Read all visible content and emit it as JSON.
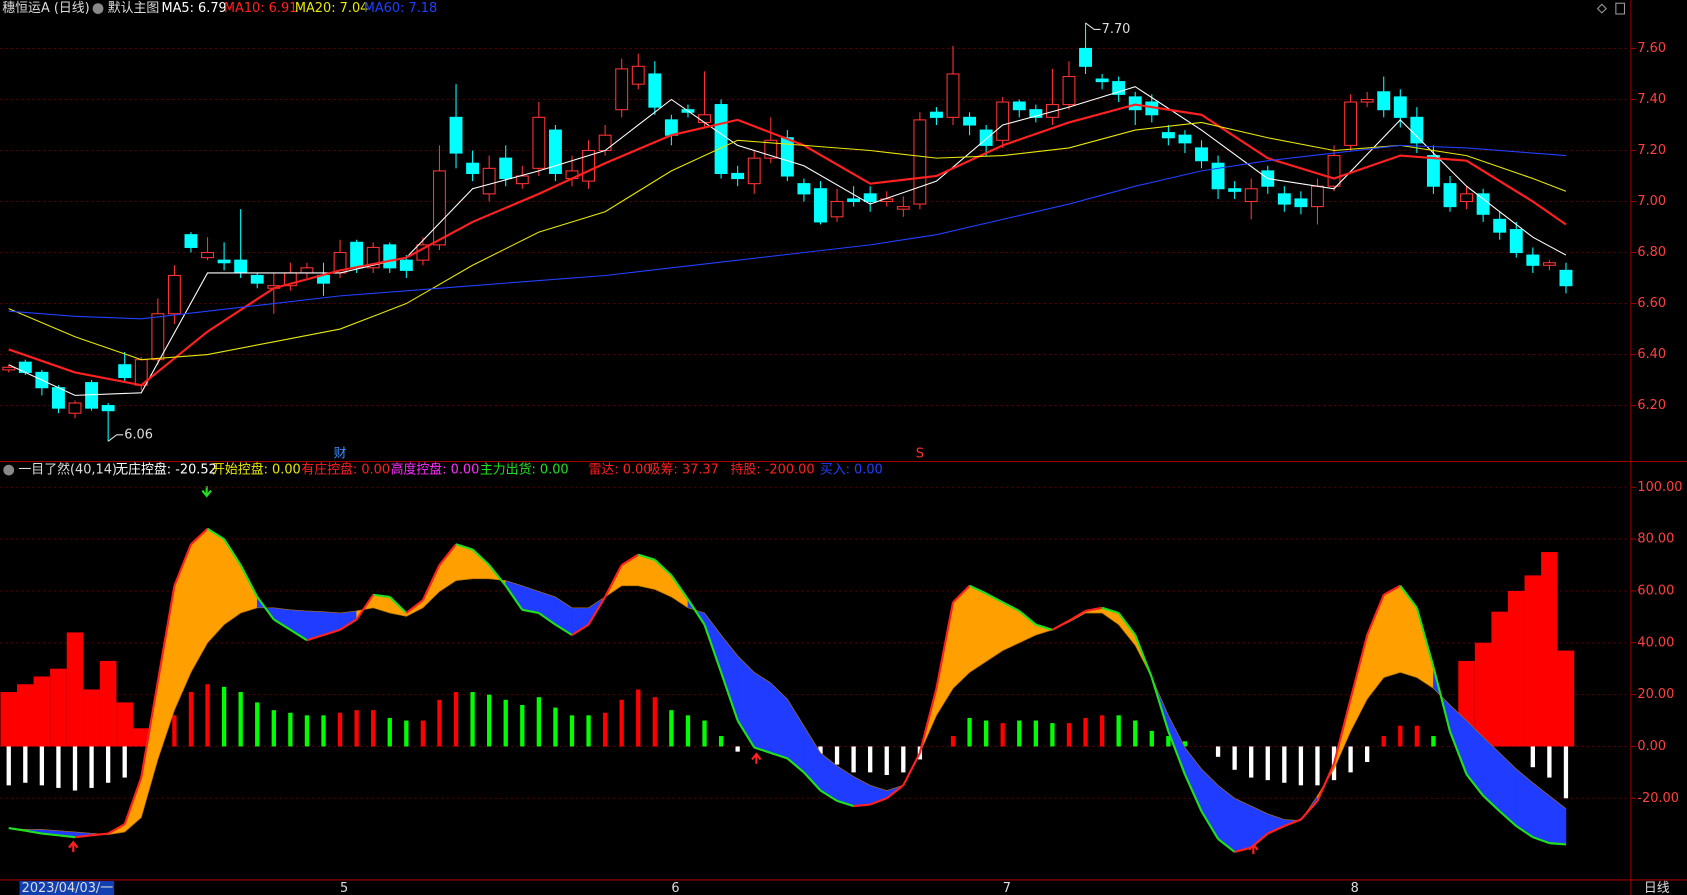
{
  "chart_data": [
    {
      "type": "candlestick",
      "title": "穗恒运A (日线)",
      "subtitle": "默认主图",
      "up_color": "#ff3232",
      "down_color": "#00ffff",
      "open": [
        6.34,
        6.37,
        6.33,
        6.27,
        6.17,
        6.29,
        6.2,
        6.36,
        6.28,
        6.38,
        6.56,
        6.87,
        6.78,
        6.77,
        6.77,
        6.71,
        6.66,
        6.67,
        6.72,
        6.71,
        6.72,
        6.84,
        6.74,
        6.83,
        6.77,
        6.77,
        6.83,
        7.33,
        7.15,
        7.03,
        7.17,
        7.07,
        7.13,
        7.28,
        7.09,
        7.08,
        7.2,
        7.36,
        7.46,
        7.5,
        7.32,
        7.36,
        7.31,
        7.38,
        7.11,
        7.07,
        7.17,
        7.25,
        7.07,
        7.05,
        6.94,
        7.01,
        7.03,
        7.0,
        6.97,
        6.99,
        7.35,
        7.33,
        7.33,
        7.28,
        7.24,
        7.39,
        7.36,
        7.33,
        7.38,
        7.6,
        7.48,
        7.47,
        7.41,
        7.39,
        7.27,
        7.26,
        7.21,
        7.15,
        7.05,
        7.0,
        7.12,
        7.03,
        7.01,
        6.98,
        7.06,
        7.22,
        7.39,
        7.43,
        7.41,
        7.33,
        7.18,
        7.07,
        7.0,
        7.03,
        6.93,
        6.89,
        6.79,
        6.75,
        6.73
      ],
      "high": [
        6.36,
        6.38,
        6.34,
        6.28,
        6.22,
        6.3,
        6.21,
        6.41,
        6.39,
        6.62,
        6.75,
        6.88,
        6.86,
        6.84,
        6.97,
        6.72,
        6.72,
        6.76,
        6.76,
        6.76,
        6.85,
        6.85,
        6.84,
        6.84,
        6.79,
        6.86,
        7.22,
        7.46,
        7.2,
        7.18,
        7.22,
        7.14,
        7.39,
        7.3,
        7.18,
        7.24,
        7.3,
        7.56,
        7.58,
        7.55,
        7.34,
        7.38,
        7.51,
        7.4,
        7.14,
        7.2,
        7.33,
        7.28,
        7.09,
        7.08,
        7.05,
        7.06,
        7.06,
        7.04,
        7.02,
        7.35,
        7.37,
        7.61,
        7.35,
        7.3,
        7.41,
        7.4,
        7.38,
        7.52,
        7.55,
        7.7,
        7.5,
        7.49,
        7.43,
        7.42,
        7.3,
        7.28,
        7.24,
        7.18,
        7.08,
        7.09,
        7.14,
        7.06,
        7.04,
        7.09,
        7.22,
        7.42,
        7.43,
        7.49,
        7.44,
        7.37,
        7.22,
        7.1,
        7.06,
        7.05,
        6.96,
        6.92,
        6.82,
        6.77,
        6.76
      ],
      "low": [
        6.33,
        6.32,
        6.24,
        6.17,
        6.15,
        6.18,
        6.06,
        6.29,
        6.26,
        6.36,
        6.52,
        6.8,
        6.77,
        6.73,
        6.7,
        6.66,
        6.56,
        6.65,
        6.7,
        6.63,
        6.7,
        6.72,
        6.72,
        6.72,
        6.7,
        6.75,
        6.81,
        7.13,
        7.08,
        7.0,
        7.06,
        7.05,
        7.1,
        7.08,
        7.06,
        7.05,
        7.18,
        7.33,
        7.44,
        7.34,
        7.22,
        7.33,
        7.29,
        7.09,
        7.06,
        7.03,
        7.15,
        7.08,
        7.0,
        6.91,
        6.92,
        6.98,
        6.96,
        6.98,
        6.94,
        6.97,
        7.3,
        7.3,
        7.26,
        7.18,
        7.21,
        7.33,
        7.31,
        7.3,
        7.36,
        7.5,
        7.44,
        7.39,
        7.3,
        7.31,
        7.22,
        7.19,
        7.13,
        7.01,
        7.01,
        6.93,
        7.03,
        6.96,
        6.95,
        6.91,
        7.04,
        7.2,
        7.37,
        7.33,
        7.29,
        7.19,
        7.03,
        6.96,
        6.97,
        6.92,
        6.85,
        6.78,
        6.72,
        6.73,
        6.64
      ],
      "close": [
        6.35,
        6.33,
        6.27,
        6.19,
        6.21,
        6.19,
        6.18,
        6.31,
        6.38,
        6.56,
        6.71,
        6.82,
        6.8,
        6.76,
        6.72,
        6.68,
        6.67,
        6.72,
        6.74,
        6.68,
        6.8,
        6.74,
        6.82,
        6.74,
        6.73,
        6.83,
        7.12,
        7.19,
        7.11,
        7.13,
        7.09,
        7.1,
        7.33,
        7.11,
        7.12,
        7.2,
        7.26,
        7.52,
        7.53,
        7.37,
        7.26,
        7.35,
        7.34,
        7.11,
        7.09,
        7.17,
        7.24,
        7.1,
        7.03,
        6.92,
        7.0,
        7.0,
        7.0,
        7.01,
        6.98,
        7.32,
        7.33,
        7.5,
        7.3,
        7.22,
        7.39,
        7.36,
        7.33,
        7.38,
        7.49,
        7.53,
        7.47,
        7.42,
        7.36,
        7.34,
        7.25,
        7.23,
        7.16,
        7.05,
        7.04,
        7.05,
        7.06,
        6.99,
        6.98,
        7.06,
        7.18,
        7.39,
        7.4,
        7.36,
        7.33,
        7.23,
        7.06,
        6.98,
        7.03,
        6.95,
        6.88,
        6.8,
        6.75,
        6.76,
        6.67
      ],
      "lines": [
        {
          "label": "MA5: 6.79",
          "color": "#ffffff",
          "x": [
            0,
            4,
            8,
            12,
            16,
            20,
            24,
            28,
            32,
            36,
            40,
            44,
            48,
            52,
            56,
            60,
            64,
            68,
            72,
            76,
            80,
            84,
            88,
            92,
            94
          ],
          "values": [
            6.36,
            6.24,
            6.25,
            6.72,
            6.72,
            6.72,
            6.78,
            7.05,
            7.12,
            7.2,
            7.4,
            7.22,
            7.14,
            6.99,
            7.08,
            7.3,
            7.37,
            7.45,
            7.28,
            7.09,
            7.05,
            7.32,
            7.06,
            6.86,
            6.79
          ]
        },
        {
          "label": "MA10: 6.91",
          "color": "#ff2020",
          "x": [
            0,
            4,
            8,
            12,
            16,
            20,
            24,
            28,
            32,
            36,
            40,
            44,
            48,
            52,
            56,
            60,
            64,
            68,
            72,
            76,
            80,
            84,
            88,
            92,
            94
          ],
          "values": [
            6.42,
            6.33,
            6.28,
            6.49,
            6.66,
            6.73,
            6.78,
            6.92,
            7.03,
            7.15,
            7.26,
            7.32,
            7.22,
            7.07,
            7.1,
            7.22,
            7.31,
            7.38,
            7.34,
            7.17,
            7.09,
            7.18,
            7.16,
            7.0,
            6.91
          ]
        },
        {
          "label": "MA20: 7.04",
          "color": "#e8e800",
          "x": [
            0,
            4,
            8,
            12,
            16,
            20,
            24,
            28,
            32,
            36,
            40,
            44,
            48,
            52,
            56,
            60,
            64,
            68,
            72,
            76,
            80,
            84,
            88,
            92,
            94
          ],
          "values": [
            6.58,
            6.47,
            6.38,
            6.4,
            6.45,
            6.5,
            6.6,
            6.75,
            6.88,
            6.96,
            7.12,
            7.24,
            7.22,
            7.2,
            7.17,
            7.18,
            7.21,
            7.28,
            7.31,
            7.25,
            7.2,
            7.22,
            7.18,
            7.09,
            7.04
          ]
        },
        {
          "label": "MA60: 7.18",
          "color": "#2040ff",
          "x": [
            0,
            4,
            8,
            12,
            16,
            20,
            24,
            28,
            32,
            36,
            40,
            44,
            48,
            52,
            56,
            60,
            64,
            68,
            72,
            76,
            80,
            84,
            88,
            92,
            94
          ],
          "values": [
            6.57,
            6.55,
            6.54,
            6.57,
            6.6,
            6.63,
            6.65,
            6.67,
            6.69,
            6.71,
            6.74,
            6.77,
            6.8,
            6.83,
            6.87,
            6.93,
            6.99,
            7.06,
            7.12,
            7.16,
            7.19,
            7.22,
            7.21,
            7.19,
            7.18
          ]
        }
      ],
      "annotations": [
        {
          "value": 7.7,
          "label": "7.70",
          "x": 65
        },
        {
          "value": 6.06,
          "label": "6.06",
          "x": 6
        },
        {
          "label": "财",
          "x": 20,
          "color": "#3a8fff"
        },
        {
          "label": "S",
          "x": 55,
          "color": "#ff3030"
        }
      ],
      "ylim": [
        5.985,
        7.79
      ],
      "yticks": [
        {
          "value": 7.6,
          "label": "7.60"
        },
        {
          "value": 7.4,
          "label": "7.40"
        },
        {
          "value": 7.2,
          "label": "7.20"
        },
        {
          "value": 7.0,
          "label": "7.00"
        },
        {
          "value": 6.8,
          "label": "6.80"
        },
        {
          "value": 6.6,
          "label": "6.60"
        },
        {
          "value": 6.4,
          "label": "6.40"
        },
        {
          "value": 6.2,
          "label": "6.20"
        }
      ],
      "grid": true
    },
    {
      "type": "indicator",
      "title": "一目了然(40,14)",
      "legend": [
        {
          "text": "无庄控盘: -20.52",
          "color": "#ffffff"
        },
        {
          "text": "开始控盘: 0.00",
          "color": "#e8e800"
        },
        {
          "text": "有庄控盘: 0.00",
          "color": "#ff2020"
        },
        {
          "text": "高度控盘: 0.00",
          "color": "#ff30ff"
        },
        {
          "text": "主力出货: 0.00",
          "color": "#20e020"
        },
        {
          "text": "雷达: 0.00",
          "color": "#ff2020"
        },
        {
          "text": "吸筹: 37.37",
          "color": "#ff2020"
        },
        {
          "text": "持股: -200.00",
          "color": "#ff2020"
        },
        {
          "text": "买入: 0.00",
          "color": "#2040ff"
        }
      ],
      "fast": {
        "values": [
          -31.5,
          -32.5,
          -33.6,
          -34.3,
          -35,
          -34.3,
          -33.6,
          -30,
          -12,
          25,
          62,
          78,
          84,
          80,
          70,
          57.7,
          49,
          45,
          41,
          43,
          45,
          49,
          58.5,
          57.7,
          51.5,
          56.4,
          70,
          78,
          76,
          70,
          62,
          52.7,
          51.5,
          47,
          43,
          47,
          57.7,
          70,
          74,
          72,
          66,
          56.8,
          47,
          28.6,
          10,
          -0.4,
          -2.5,
          -4.6,
          -10,
          -17,
          -21,
          -23,
          -22.4,
          -20,
          -15,
          -2.5,
          22.4,
          55.6,
          62,
          59,
          55.6,
          52.3,
          47,
          45,
          48.5,
          52.3,
          53.5,
          51.5,
          43,
          26.6,
          5.8,
          -10.8,
          -25,
          -35.7,
          -40.7,
          -39,
          -33.6,
          -30.7,
          -28.2,
          -21,
          -6.6,
          18.3,
          43,
          58.5,
          62,
          53.5,
          30.7,
          5.8,
          -10.8,
          -19,
          -25,
          -30.7,
          -35,
          -37.3,
          -37.8
        ]
      },
      "slow": {
        "values": [
          -31.5,
          -32,
          -32,
          -32.5,
          -33,
          -33.5,
          -34,
          -33,
          -27.4,
          -5,
          14,
          28.6,
          40,
          47,
          51.5,
          53.5,
          53.5,
          52.7,
          52.3,
          52,
          51.5,
          52.3,
          53.5,
          51.5,
          50.2,
          53.5,
          59.8,
          64,
          64.7,
          64.7,
          64,
          62,
          59.8,
          57.7,
          53.5,
          53.5,
          57.7,
          62,
          62,
          60.6,
          57.7,
          53.5,
          51.5,
          43,
          35,
          28.6,
          24.5,
          18.3,
          7.9,
          -2.5,
          -7.5,
          -11.6,
          -15,
          -17,
          -15,
          -2.5,
          12,
          22.4,
          28.6,
          32.8,
          37,
          40,
          43,
          45,
          48,
          51.5,
          51.5,
          47,
          39,
          26.6,
          12,
          -0.4,
          -8.7,
          -15,
          -20,
          -23,
          -26,
          -28.2,
          -28.6,
          -19,
          -8.7,
          5.8,
          18.3,
          26.6,
          28.6,
          26.6,
          22.4,
          16,
          10,
          3.7,
          -2.5,
          -8.7,
          -14,
          -19,
          -24
        ]
      },
      "fill_colors": [
        "#ffa000",
        "#1f3cff"
      ],
      "rise_color": "#ff2020",
      "fall_color": "#20e020",
      "histogram": {
        "values": [
          -15,
          -14,
          -15,
          -16,
          -17,
          -16,
          -14,
          -12,
          0,
          2,
          12,
          21,
          24,
          23,
          21,
          17,
          14,
          13,
          12,
          12,
          13,
          14,
          14,
          11,
          10,
          10,
          18,
          21,
          21,
          20,
          18,
          16,
          19,
          15,
          12,
          12,
          13,
          18,
          22,
          19,
          14,
          12,
          10,
          4,
          -2,
          0,
          0,
          0,
          0,
          -3,
          -7,
          -10,
          -10,
          -11,
          -10,
          -5,
          0,
          4,
          11,
          10,
          9,
          10,
          10,
          9,
          9,
          11,
          12,
          12,
          10,
          6,
          4,
          2,
          0,
          -4,
          -9,
          -12,
          -13,
          -14,
          -15,
          -15,
          -13,
          -10,
          -6,
          4,
          8,
          8,
          4,
          0,
          -5,
          -8,
          0,
          0,
          -8,
          -12,
          -20
        ],
        "colors": [
          "white",
          "white",
          "white",
          "white",
          "white",
          "white",
          "white",
          "white",
          "white",
          "red",
          "red",
          "red",
          "red",
          "lime",
          "lime",
          "lime",
          "lime",
          "lime",
          "lime",
          "lime",
          "red",
          "red",
          "red",
          "lime",
          "lime",
          "red",
          "red",
          "red",
          "lime",
          "lime",
          "lime",
          "lime",
          "lime",
          "lime",
          "lime",
          "lime",
          "red",
          "red",
          "red",
          "red",
          "lime",
          "lime",
          "lime",
          "lime",
          "white",
          "white",
          "white",
          "white",
          "white",
          "white",
          "white",
          "white",
          "white",
          "white",
          "white",
          "white",
          "white",
          "red",
          "lime",
          "lime",
          "red",
          "lime",
          "lime",
          "lime",
          "red",
          "red",
          "red",
          "lime",
          "lime",
          "lime",
          "lime",
          "lime",
          "white",
          "white",
          "white",
          "white",
          "white",
          "white",
          "white",
          "white",
          "white",
          "white",
          "white",
          "red",
          "red",
          "red",
          "lime",
          "white",
          "white",
          "white",
          "white",
          "white",
          "white",
          "white",
          "white"
        ]
      },
      "block": {
        "color": "#ff0000",
        "x": [
          0,
          1,
          2,
          3,
          4,
          5,
          6,
          7,
          8,
          88,
          89,
          90,
          91,
          92,
          93,
          94
        ],
        "values": [
          21,
          24,
          27,
          30,
          44,
          22,
          33,
          17,
          7,
          33,
          40,
          52,
          60,
          66,
          75,
          37
        ]
      },
      "ylim": [
        -51.5,
        108.7
      ],
      "yticks": [
        {
          "value": 100,
          "label": "100.00"
        },
        {
          "value": 80,
          "label": "80.00"
        },
        {
          "value": 60,
          "label": "60.00"
        },
        {
          "value": 40,
          "label": "40.00"
        },
        {
          "value": 20,
          "label": "20.00"
        },
        {
          "value": 0,
          "label": "0.00"
        },
        {
          "value": -20,
          "label": "-20.00"
        }
      ],
      "xticks": [
        {
          "value": 0,
          "label": "2023/04/03/一"
        },
        {
          "value": 20,
          "label": "5"
        },
        {
          "value": 40,
          "label": "6"
        },
        {
          "value": 60,
          "label": "7"
        },
        {
          "value": 81,
          "label": "8"
        }
      ],
      "period": "日线",
      "grid": true
    }
  ]
}
